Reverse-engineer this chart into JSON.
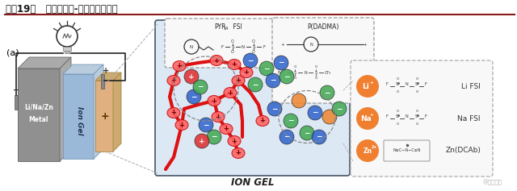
{
  "title": "图表19：   聚离子液体-锂盐电解质示意",
  "bg_color": "#ffffff",
  "title_color": "#1a1a1a",
  "title_fontsize": 8.5,
  "label_a": "(a)",
  "ion_gel_label": "ION GEL",
  "pyr_label": "PYR",
  "pyr_sub": "14",
  "pyr_rest": " FSI",
  "pdadma_label": "P(DADMA)",
  "li_label": "Li FSI",
  "na_label": "Na FSI",
  "zn_label": "Zn(DCAb)",
  "li_ion": "Li+",
  "na_ion": "Na+",
  "zn_ion": "Zn2+",
  "header_line_color": "#8B1A1A",
  "battery_gray": "#909090",
  "battery_blue": "#9ab8d8",
  "battery_orange": "#e0b080",
  "ion_gel_bg": "#dde8f5",
  "red_polymer": "#dd1111",
  "blue_dot": "#3366cc",
  "green_dot": "#44aa55",
  "red_dot": "#dd3333",
  "orange_dot": "#ee8833",
  "orange_circle": "#f08030",
  "dashed_box_color": "#aaaaaa",
  "watermark": "@未来智库",
  "callout_bg": "#f5f5f5",
  "right_panel_bg": "#f5f5f5"
}
